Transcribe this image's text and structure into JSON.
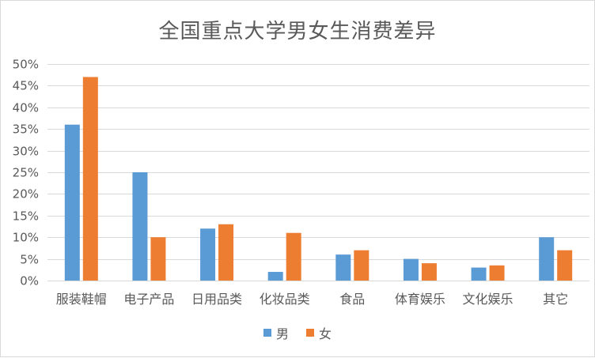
{
  "chart_data": {
    "type": "bar",
    "title": "全国重点大学男女生消费差异",
    "categories": [
      "服装鞋帽",
      "电子产品",
      "日用品类",
      "化妆品类",
      "食品",
      "体育娱乐",
      "文化娱乐",
      "其它"
    ],
    "series": [
      {
        "name": "男",
        "color": "#5b9bd5",
        "values": [
          36,
          25,
          12,
          2,
          6,
          5,
          3,
          10
        ]
      },
      {
        "name": "女",
        "color": "#ed7d31",
        "values": [
          47,
          10,
          13,
          11,
          7,
          4,
          3.5,
          7
        ]
      }
    ],
    "y_unit": "%",
    "ylim": [
      0,
      50
    ],
    "y_ticks": [
      "0%",
      "5%",
      "10%",
      "15%",
      "20%",
      "25%",
      "30%",
      "35%",
      "40%",
      "45%",
      "50%"
    ],
    "grid": true,
    "legend_position": "bottom",
    "gridline_color": "#d9d9d9"
  }
}
